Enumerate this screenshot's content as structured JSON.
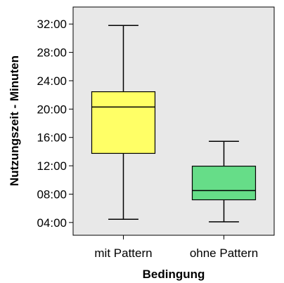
{
  "chart_data": {
    "type": "boxplot",
    "xlabel": "Bedingung",
    "ylabel": "Nutzungszeit - Minuten",
    "y_ticks": [
      "04:00",
      "08:00",
      "12:00",
      "16:00",
      "20:00",
      "24:00",
      "28:00",
      "32:00"
    ],
    "y_tick_values": [
      4,
      8,
      12,
      16,
      20,
      24,
      28,
      32
    ],
    "ylim_minutes": [
      2.2,
      34.4
    ],
    "categories": [
      "mit Pattern",
      "ohne Pattern"
    ],
    "boxes": [
      {
        "category": "mit Pattern",
        "min": 4.45,
        "q1": 13.75,
        "median": 20.3,
        "q3": 22.45,
        "max": 31.8,
        "color": "#ffff66"
      },
      {
        "category": "ohne Pattern",
        "min": 4.1,
        "q1": 7.2,
        "median": 8.5,
        "q3": 11.95,
        "max": 15.45,
        "color": "#66dd88"
      }
    ],
    "plot_background": "#e8e8e8",
    "grid": false
  }
}
